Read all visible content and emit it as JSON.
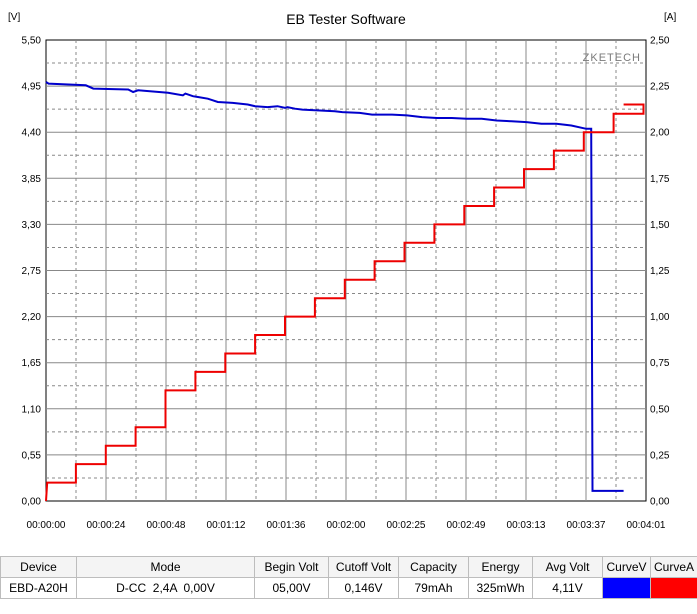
{
  "title": "EB Tester Software",
  "watermark": "ZKETECH",
  "colors": {
    "voltage": "#0000cc",
    "current": "#ee0000",
    "grid": "#888888",
    "curveV": "#0000ff",
    "curveA": "#ff0000"
  },
  "chart_data": {
    "type": "line",
    "title": "EB Tester Software",
    "y_left_label": "[V]",
    "y_right_label": "[A]",
    "y_left_range": [
      0,
      5.5
    ],
    "y_right_range": [
      0,
      2.5
    ],
    "y_left_ticks": [
      "5,50",
      "4,95",
      "4,40",
      "3,85",
      "3,30",
      "2,75",
      "2,20",
      "1,65",
      "1,10",
      "0,55",
      "0,00"
    ],
    "y_right_ticks": [
      "2,50",
      "2,25",
      "2,00",
      "1,75",
      "1,50",
      "1,25",
      "1,00",
      "0,75",
      "0,50",
      "0,25",
      "0,00"
    ],
    "x_range_seconds": [
      0,
      241
    ],
    "x_ticks": [
      "00:00:00",
      "00:00:24",
      "00:00:48",
      "00:01:12",
      "00:01:36",
      "00:02:00",
      "00:02:25",
      "00:02:49",
      "00:03:13",
      "00:03:37",
      "00:04:01"
    ],
    "grid": true,
    "series": [
      {
        "axis": "left",
        "color": "#0000cc",
        "points": [
          [
            0,
            5.0
          ],
          [
            1,
            4.98
          ],
          [
            16,
            4.96
          ],
          [
            19,
            4.92
          ],
          [
            33,
            4.91
          ],
          [
            35,
            4.88
          ],
          [
            37,
            4.9
          ],
          [
            49,
            4.87
          ],
          [
            55,
            4.84
          ],
          [
            56,
            4.86
          ],
          [
            59,
            4.83
          ],
          [
            61,
            4.82
          ],
          [
            65,
            4.8
          ],
          [
            67,
            4.78
          ],
          [
            69,
            4.76
          ],
          [
            75,
            4.75
          ],
          [
            81,
            4.73
          ],
          [
            84,
            4.71
          ],
          [
            89,
            4.7
          ],
          [
            93,
            4.71
          ],
          [
            96,
            4.69
          ],
          [
            97,
            4.7
          ],
          [
            100,
            4.68
          ],
          [
            103,
            4.67
          ],
          [
            109,
            4.66
          ],
          [
            116,
            4.65
          ],
          [
            119,
            4.64
          ],
          [
            126,
            4.63
          ],
          [
            131,
            4.61
          ],
          [
            139,
            4.61
          ],
          [
            145,
            4.6
          ],
          [
            151,
            4.58
          ],
          [
            157,
            4.57
          ],
          [
            163,
            4.57
          ],
          [
            169,
            4.56
          ],
          [
            175,
            4.56
          ],
          [
            181,
            4.54
          ],
          [
            187,
            4.53
          ],
          [
            193,
            4.52
          ],
          [
            199,
            4.5
          ],
          [
            205,
            4.5
          ],
          [
            211,
            4.48
          ],
          [
            217,
            4.44
          ],
          [
            218,
            4.44
          ],
          [
            219,
            4.44
          ],
          [
            219.5,
            0.12
          ],
          [
            232,
            0.12
          ]
        ]
      },
      {
        "axis": "right",
        "color": "#ee0000",
        "points": [
          [
            0,
            0
          ],
          [
            0.5,
            0.1
          ],
          [
            12,
            0.1
          ],
          [
            12,
            0.2
          ],
          [
            24,
            0.2
          ],
          [
            24,
            0.3
          ],
          [
            36,
            0.3
          ],
          [
            36,
            0.4
          ],
          [
            48,
            0.4
          ],
          [
            48,
            0.6
          ],
          [
            60,
            0.6
          ],
          [
            60,
            0.7
          ],
          [
            72,
            0.7
          ],
          [
            72,
            0.8
          ],
          [
            84,
            0.8
          ],
          [
            84,
            0.9
          ],
          [
            96,
            0.9
          ],
          [
            96,
            1.0
          ],
          [
            108,
            1.0
          ],
          [
            108,
            1.1
          ],
          [
            120,
            1.1
          ],
          [
            120,
            1.2
          ],
          [
            132,
            1.2
          ],
          [
            132,
            1.3
          ],
          [
            144,
            1.3
          ],
          [
            144,
            1.4
          ],
          [
            156,
            1.4
          ],
          [
            156,
            1.5
          ],
          [
            168,
            1.5
          ],
          [
            168,
            1.6
          ],
          [
            180,
            1.6
          ],
          [
            180,
            1.7
          ],
          [
            192,
            1.7
          ],
          [
            192,
            1.8
          ],
          [
            204,
            1.8
          ],
          [
            204,
            1.9
          ],
          [
            216,
            1.9
          ],
          [
            216,
            2.0
          ],
          [
            228,
            2.0
          ],
          [
            228,
            2.1
          ],
          [
            240,
            2.1
          ],
          [
            240,
            2.15
          ],
          [
            232,
            2.15
          ]
        ]
      }
    ]
  },
  "table": {
    "headers": [
      "Device",
      "Mode",
      "Begin Volt",
      "Cutoff Volt",
      "Capacity",
      "Energy",
      "Avg Volt",
      "CurveV",
      "CurveA"
    ],
    "row": [
      "EBD-A20H",
      "D-CC  2,4A  0,00V",
      "05,00V",
      "0,146V",
      "79mAh",
      "325mWh",
      "4,11V"
    ]
  }
}
